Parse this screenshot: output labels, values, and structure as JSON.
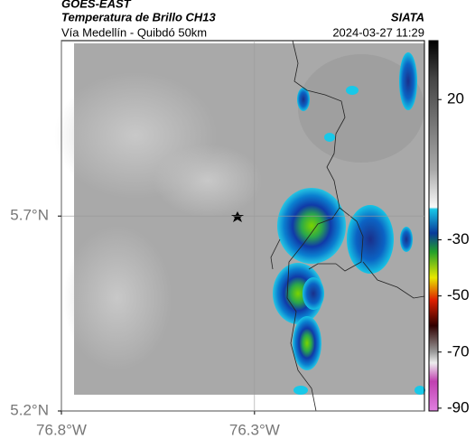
{
  "header": {
    "source": "GOES-EAST",
    "title": "Temperatura de Brillo CH13",
    "subtitle": "Vía Medellín - Quibdó 50km",
    "brand": "SIATA",
    "timestamp": "2024-03-27 11:29"
  },
  "map": {
    "xlim": [
      -76.8,
      -75.86
    ],
    "ylim": [
      5.2,
      6.15
    ],
    "xticks": [
      {
        "value": -76.8,
        "label": "76.8°W"
      },
      {
        "value": -76.3,
        "label": "76.3°W"
      }
    ],
    "yticks": [
      {
        "value": 5.2,
        "label": "5.2°N"
      },
      {
        "value": 5.7,
        "label": "5.7°N"
      }
    ],
    "grid": true
  },
  "colorbar": {
    "lim": [
      41,
      -91
    ],
    "ticks": [
      20,
      -30,
      -50,
      -70,
      -90
    ]
  }
}
